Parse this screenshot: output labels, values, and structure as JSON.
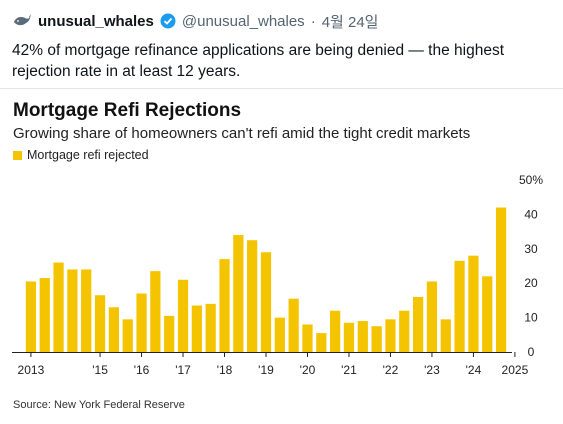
{
  "tweet": {
    "display_name": "unusual_whales",
    "handle": "@unusual_whales",
    "separator": "·",
    "date": "4월 24일",
    "text": "42% of mortgage refinance applications are being denied — the highest rejection rate in at least 12 years."
  },
  "icons": {
    "avatar": "whale-icon",
    "verified": "verified-badge-icon"
  },
  "colors": {
    "bar": "#f5c400",
    "verified": "#1d9bf0"
  },
  "chart_data": {
    "type": "bar",
    "title": "Mortgage Refi Rejections",
    "subtitle": "Growing share of homeowners can't refi amid the tight credit markets",
    "legend": "Mortgage refi rejected",
    "source": "Source: New York Federal Reserve",
    "ylim": [
      0,
      50
    ],
    "yticks": [
      "50%",
      "40",
      "30",
      "20",
      "10",
      "0"
    ],
    "ytick_values": [
      50,
      40,
      30,
      20,
      10,
      0
    ],
    "xtick_labels": [
      "2013",
      "'15",
      "'16",
      "'17",
      "'18",
      "'19",
      "'20",
      "'21",
      "'22",
      "'23",
      "'24",
      "2025"
    ],
    "xtick_bar_index": [
      0,
      5,
      8,
      11,
      14,
      17,
      20,
      23,
      26,
      29,
      32,
      35
    ],
    "values": [
      20.5,
      21.5,
      26,
      24,
      24,
      16.5,
      13,
      9.5,
      17,
      23.5,
      10.5,
      21,
      13.5,
      14,
      27,
      34,
      32.5,
      29,
      10,
      15.5,
      8,
      5.5,
      12,
      8.5,
      9,
      7.5,
      9.5,
      12,
      16,
      20.5,
      9.5,
      26.5,
      28,
      22,
      42
    ]
  }
}
